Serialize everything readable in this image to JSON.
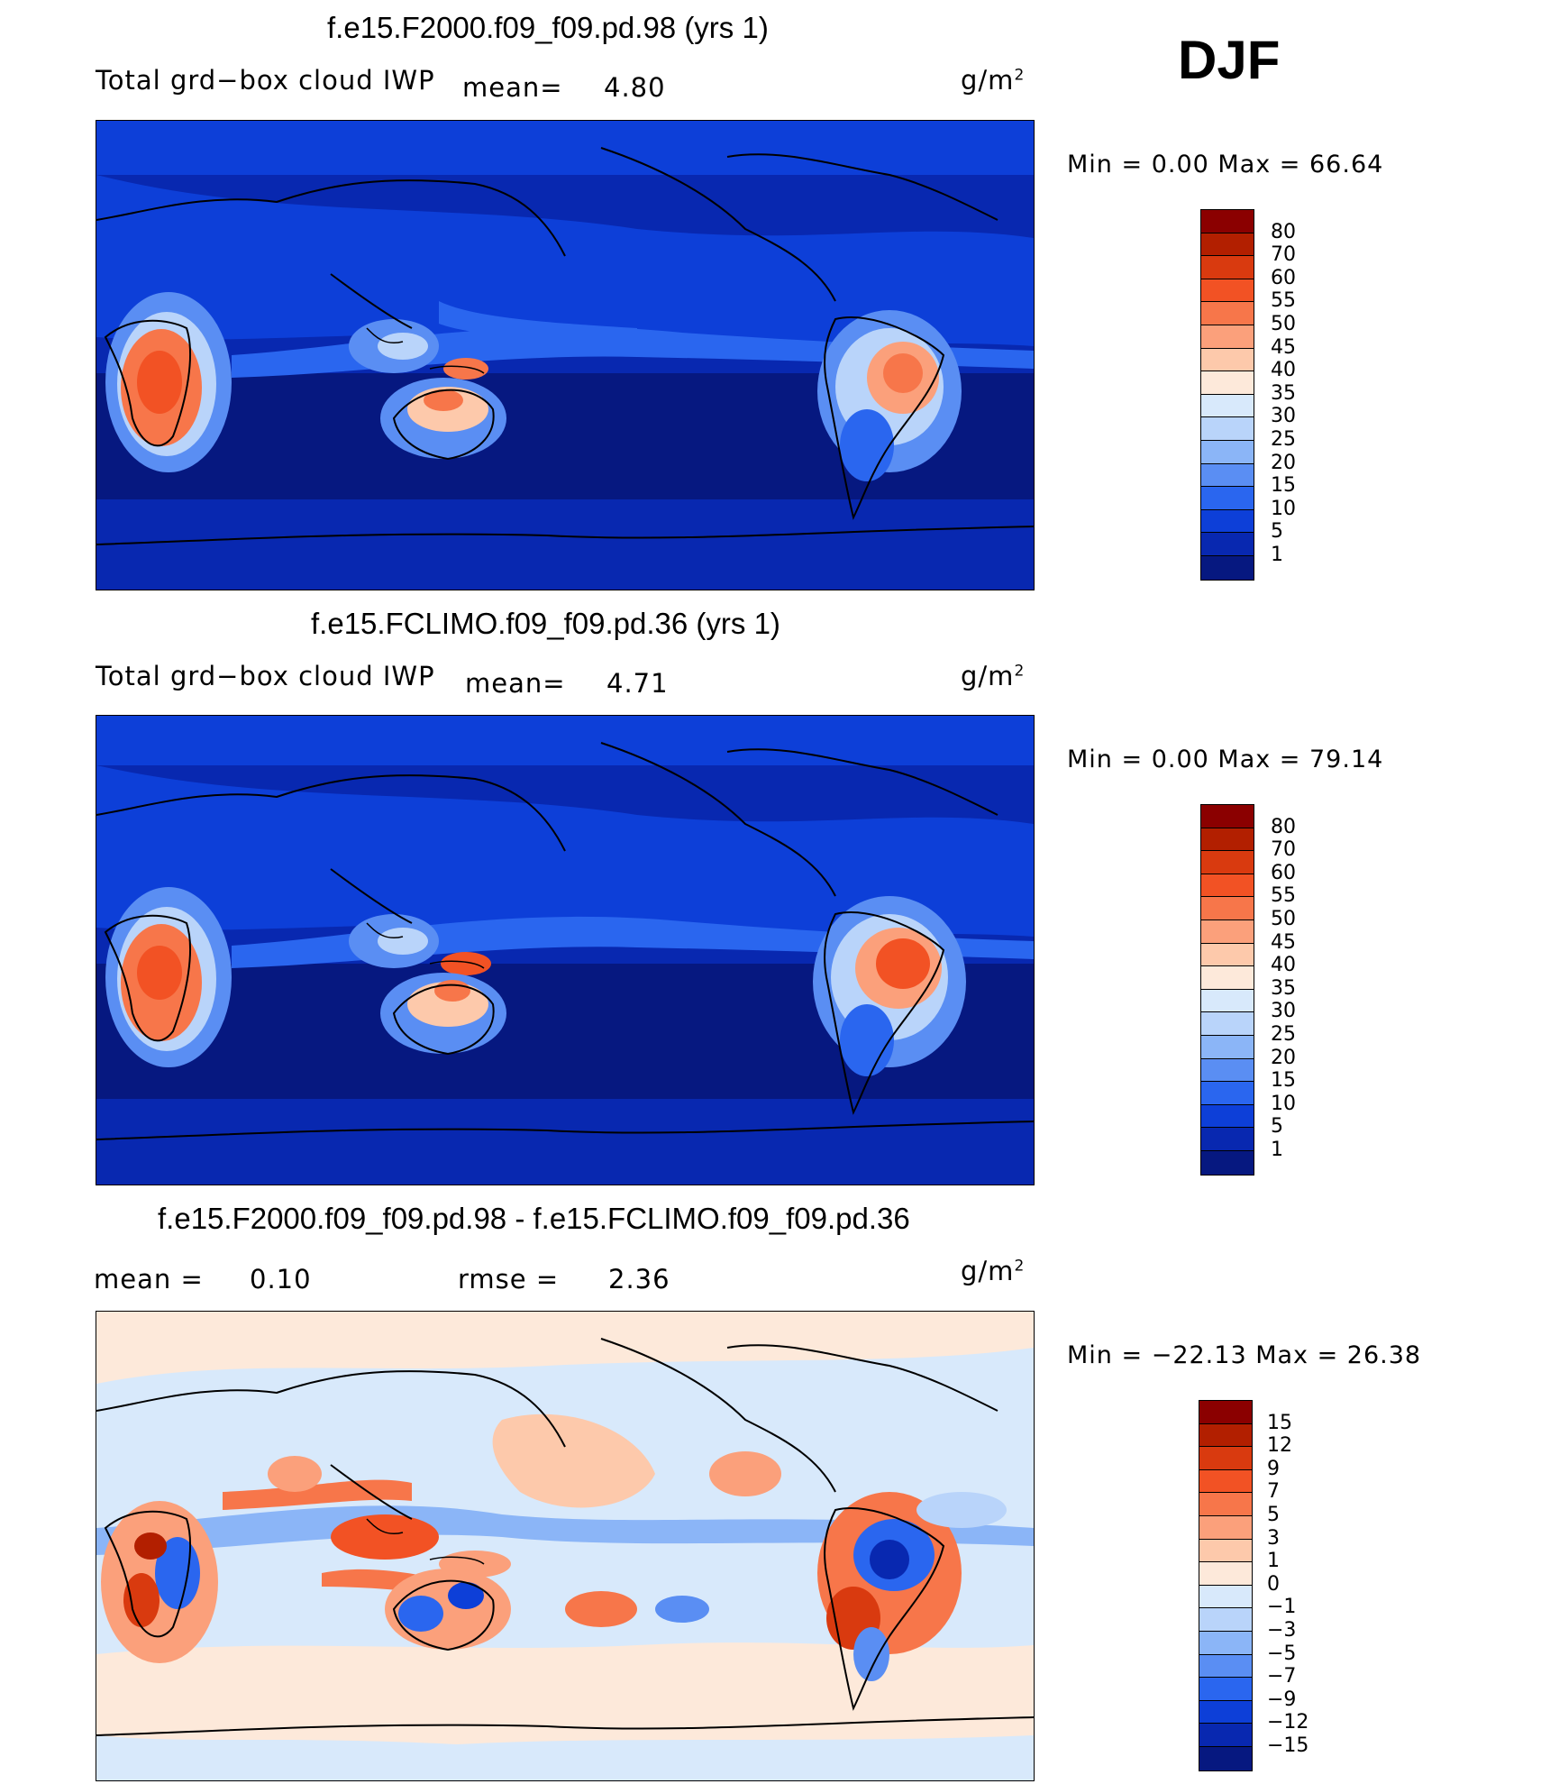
{
  "season": "DJF",
  "panels": [
    {
      "title": "f.e15.F2000.f09_f09.pd.98 (yrs 1)",
      "variable": "Total grd−box cloud IWP",
      "mean_label": "mean=",
      "mean_value": "4.80",
      "units": "g/m",
      "units_sup": "2",
      "minmax_text": "Min =      0.00  Max =    66.64",
      "colorbar": {
        "colors": [
          "#8b0000",
          "#b21f00",
          "#d93a0f",
          "#f25224",
          "#f7764a",
          "#fba07b",
          "#fdc9ab",
          "#fde9da",
          "#d8e9fb",
          "#b9d4fa",
          "#8bb5f7",
          "#5a8ef3",
          "#2a66ef",
          "#0d3fd8",
          "#0828b0",
          "#061880"
        ],
        "labels": [
          "80",
          "70",
          "60",
          "55",
          "50",
          "45",
          "40",
          "35",
          "30",
          "25",
          "20",
          "15",
          "10",
          "5",
          "1"
        ]
      },
      "chart_data": {
        "type": "heatmap",
        "title": "f.e15.F2000.f09_f09.pd.98 (yrs 1)",
        "field": "Total grd−box cloud IWP",
        "units": "g/m2",
        "mean": 4.8,
        "min": 0.0,
        "max": 66.64,
        "contour_levels": [
          1,
          5,
          10,
          15,
          20,
          25,
          30,
          35,
          40,
          45,
          50,
          55,
          60,
          70,
          80
        ]
      }
    },
    {
      "title": "f.e15.FCLIMO.f09_f09.pd.36 (yrs 1)",
      "variable": "Total grd−box cloud IWP",
      "mean_label": "mean=",
      "mean_value": "4.71",
      "units": "g/m",
      "units_sup": "2",
      "minmax_text": "Min =      0.00  Max =    79.14",
      "colorbar": {
        "colors": [
          "#8b0000",
          "#b21f00",
          "#d93a0f",
          "#f25224",
          "#f7764a",
          "#fba07b",
          "#fdc9ab",
          "#fde9da",
          "#d8e9fb",
          "#b9d4fa",
          "#8bb5f7",
          "#5a8ef3",
          "#2a66ef",
          "#0d3fd8",
          "#0828b0",
          "#061880"
        ],
        "labels": [
          "80",
          "70",
          "60",
          "55",
          "50",
          "45",
          "40",
          "35",
          "30",
          "25",
          "20",
          "15",
          "10",
          "5",
          "1"
        ]
      },
      "chart_data": {
        "type": "heatmap",
        "title": "f.e15.FCLIMO.f09_f09.pd.36 (yrs 1)",
        "field": "Total grd−box cloud IWP",
        "units": "g/m2",
        "mean": 4.71,
        "min": 0.0,
        "max": 79.14,
        "contour_levels": [
          1,
          5,
          10,
          15,
          20,
          25,
          30,
          35,
          40,
          45,
          50,
          55,
          60,
          70,
          80
        ]
      }
    },
    {
      "title": "f.e15.F2000.f09_f09.pd.98 - f.e15.FCLIMO.f09_f09.pd.36",
      "mean_label": "mean  =",
      "mean_value": "0.10",
      "rmse_label": "rmse  =",
      "rmse_value": "2.36",
      "units": "g/m",
      "units_sup": "2",
      "minmax_text": "Min = −22.13  Max =    26.38",
      "colorbar": {
        "colors": [
          "#8b0000",
          "#b21f00",
          "#d93a0f",
          "#f25224",
          "#f7764a",
          "#fba07b",
          "#fdc9ab",
          "#fde9da",
          "#d8e9fb",
          "#b9d4fa",
          "#8bb5f7",
          "#5a8ef3",
          "#2a66ef",
          "#0d3fd8",
          "#0828b0",
          "#061880"
        ],
        "labels": [
          "15",
          "12",
          "9",
          "7",
          "5",
          "3",
          "1",
          "0",
          "−1",
          "−3",
          "−5",
          "−7",
          "−9",
          "−12",
          "−15"
        ]
      },
      "chart_data": {
        "type": "heatmap",
        "title": "f.e15.F2000.f09_f09.pd.98 - f.e15.FCLIMO.f09_f09.pd.36",
        "units": "g/m2",
        "mean": 0.1,
        "rmse": 2.36,
        "min": -22.13,
        "max": 26.38,
        "contour_levels": [
          -15,
          -12,
          -9,
          -7,
          -5,
          -3,
          -1,
          0,
          1,
          3,
          5,
          7,
          9,
          12,
          15
        ]
      }
    }
  ]
}
